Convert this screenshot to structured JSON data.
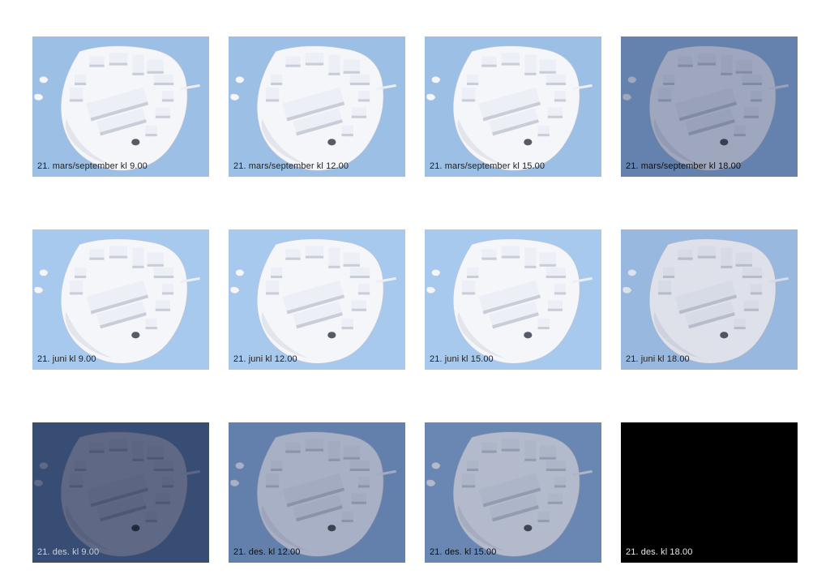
{
  "layout": {
    "rows": 3,
    "cols": 4,
    "page_background": "#ffffff",
    "label_fontsize": 11,
    "font_family": "Helvetica Neue, Arial, sans-serif"
  },
  "terrain": {
    "land_color": "#f4f6fa",
    "land_shadow": "#d7dbe4",
    "building_face": "#eceff5",
    "building_shadow": "#c9cdd8",
    "dark_spot": "#555c66",
    "outline": "#bfc4d0"
  },
  "tiles": [
    {
      "label": "21. mars/september kl 9.00",
      "sky_color": "#9cbfe6",
      "shade_color": "rgba(0,0,0,0)",
      "label_color": "#222222",
      "night": false
    },
    {
      "label": "21. mars/september kl 12.00",
      "sky_color": "#9cbfe6",
      "shade_color": "rgba(0,0,0,0)",
      "label_color": "#222222",
      "night": false
    },
    {
      "label": "21. mars/september kl 15.00",
      "sky_color": "#9cbfe6",
      "shade_color": "rgba(0,0,0,0)",
      "label_color": "#222222",
      "night": false
    },
    {
      "label": "21. mars/september kl 18.00",
      "sky_color": "#9cbfe6",
      "shade_color": "rgba(40,60,110,0.42)",
      "label_color": "#0f0f0f",
      "night": false
    },
    {
      "label": "21. juni kl 9.00",
      "sky_color": "#a7c9ee",
      "shade_color": "rgba(0,0,0,0)",
      "label_color": "#222222",
      "night": false
    },
    {
      "label": "21. juni kl 12.00",
      "sky_color": "#a7c9ee",
      "shade_color": "rgba(0,0,0,0)",
      "label_color": "#222222",
      "night": false
    },
    {
      "label": "21. juni kl 15.00",
      "sky_color": "#a7c9ee",
      "shade_color": "rgba(0,0,0,0)",
      "label_color": "#222222",
      "night": false
    },
    {
      "label": "21. juni kl 18.00",
      "sky_color": "#a7c9ee",
      "shade_color": "rgba(30,50,100,0.10)",
      "label_color": "#222222",
      "night": false
    },
    {
      "label": "21. des. kl 9.00",
      "sky_color": "#8fb3da",
      "shade_color": "rgba(25,40,80,0.68)",
      "label_color": "#c9d2de",
      "night": false
    },
    {
      "label": "21. des. kl 12.00",
      "sky_color": "#8fb3da",
      "shade_color": "rgba(30,50,100,0.35)",
      "label_color": "#111111",
      "night": false
    },
    {
      "label": "21. des. kl 15.00",
      "sky_color": "#8fb3da",
      "shade_color": "rgba(30,50,100,0.30)",
      "label_color": "#111111",
      "night": false
    },
    {
      "label": "21. des. kl 18.00",
      "sky_color": "#000000",
      "shade_color": "rgba(0,0,0,0)",
      "label_color": "#e6e6e6",
      "night": true
    }
  ]
}
